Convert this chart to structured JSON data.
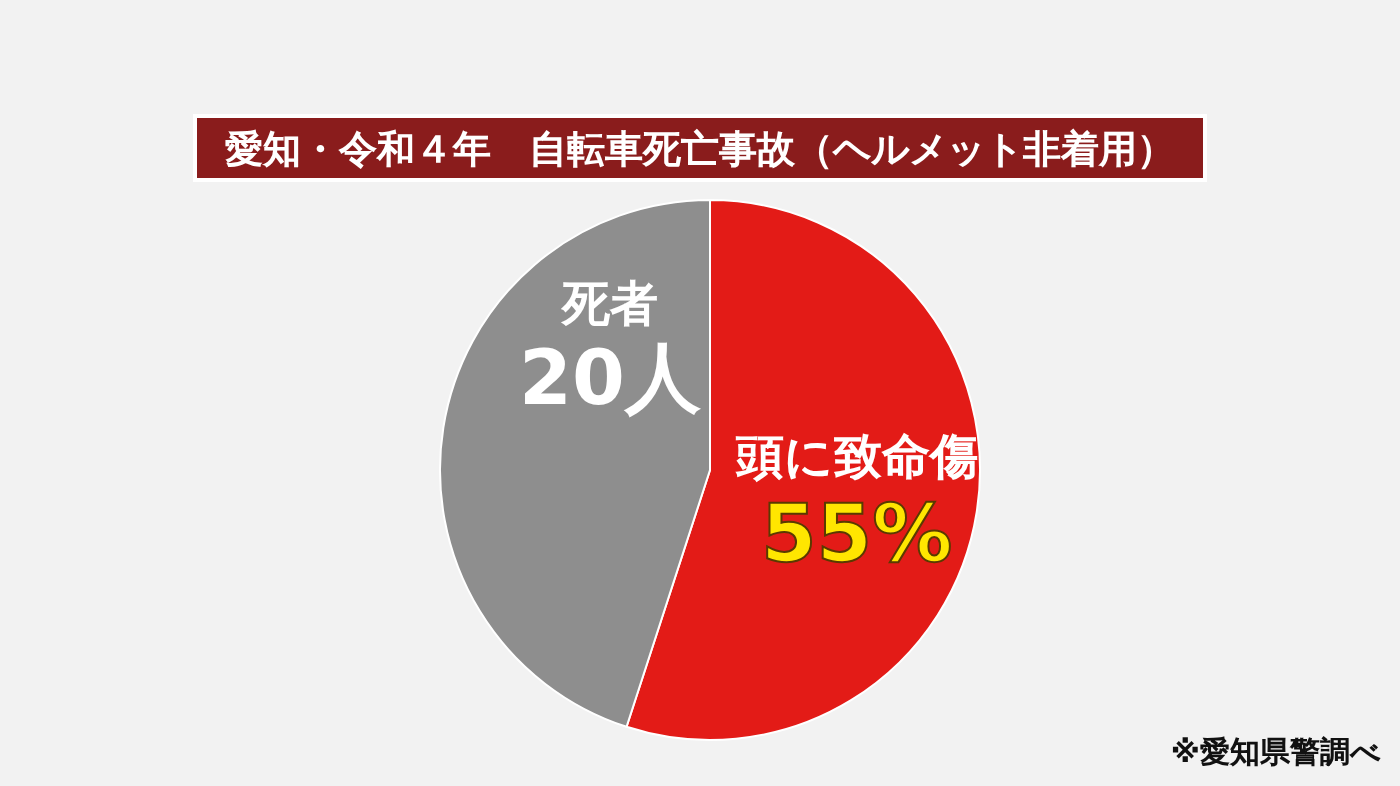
{
  "chart_data": {
    "type": "pie",
    "title": "愛知・令和４年　自転車死亡事故（ヘルメット非着用）",
    "categories": [
      "頭に致命傷",
      null
    ],
    "values": [
      55,
      45
    ],
    "colors": [
      "#e31b17",
      "#8e8e8e"
    ],
    "value_labels": [
      "55%",
      null
    ],
    "annotations": [
      "死者 20人",
      "※愛知県警調べ"
    ]
  }
}
